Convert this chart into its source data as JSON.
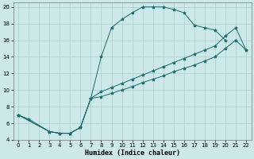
{
  "xlabel": "Humidex (Indice chaleur)",
  "bg_color": "#cce8e8",
  "grid_color": "#aacfcf",
  "line_color": "#1a6b6b",
  "xlim": [
    -0.5,
    22.5
  ],
  "ylim": [
    4,
    20.5
  ],
  "xticks": [
    0,
    1,
    2,
    3,
    4,
    5,
    6,
    7,
    8,
    9,
    10,
    11,
    12,
    13,
    14,
    15,
    16,
    17,
    18,
    19,
    20,
    21,
    22
  ],
  "yticks": [
    4,
    6,
    8,
    10,
    12,
    14,
    16,
    18,
    20
  ],
  "curve1_x": [
    0,
    1,
    3,
    4,
    5,
    6,
    7,
    8,
    9,
    10,
    11,
    12,
    13,
    14,
    15,
    16,
    17,
    18,
    19,
    20
  ],
  "curve1_y": [
    7.0,
    6.5,
    5.0,
    4.8,
    4.8,
    5.5,
    9.0,
    14.0,
    17.5,
    18.5,
    19.3,
    20.0,
    20.0,
    20.0,
    19.7,
    19.3,
    17.8,
    17.5,
    17.2,
    16.0
  ],
  "line2_x": [
    0,
    3,
    4,
    5,
    6,
    7,
    8,
    9,
    10,
    11,
    12,
    13,
    14,
    15,
    16,
    17,
    18,
    19,
    20,
    21,
    22
  ],
  "line2_y": [
    7.0,
    5.0,
    4.8,
    4.8,
    5.5,
    9.0,
    9.8,
    10.3,
    10.8,
    11.3,
    11.8,
    12.3,
    12.8,
    13.3,
    13.8,
    14.3,
    14.8,
    15.3,
    16.5,
    17.5,
    14.8
  ],
  "line3_x": [
    0,
    3,
    4,
    5,
    6,
    7,
    8,
    9,
    10,
    11,
    12,
    13,
    14,
    15,
    16,
    17,
    18,
    19,
    20,
    21,
    22
  ],
  "line3_y": [
    7.0,
    5.0,
    4.8,
    4.8,
    5.5,
    9.0,
    9.2,
    9.6,
    10.0,
    10.4,
    10.9,
    11.3,
    11.7,
    12.2,
    12.6,
    13.0,
    13.5,
    14.0,
    15.0,
    16.0,
    14.8
  ]
}
